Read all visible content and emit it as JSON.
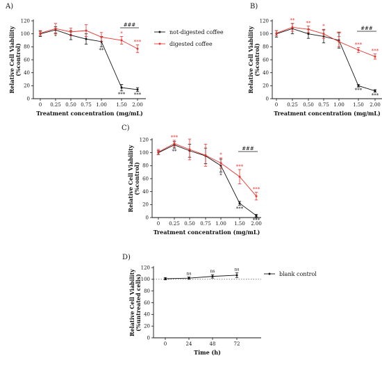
{
  "chart_data": [
    {
      "id": "A",
      "type": "line",
      "panel_label": "A)",
      "xlabel": "Treatment concentration (mg/mL)",
      "ylabel_line1": "Relative Cell Viability",
      "ylabel_line2": "(%control)",
      "categories": [
        "0",
        "0.25",
        "0.50",
        "0.75",
        "1.00",
        "1.50",
        "2.00"
      ],
      "ylim": [
        0,
        120
      ],
      "yticks": [
        "0",
        "20",
        "40",
        "60",
        "80",
        "100",
        "120"
      ],
      "legend_position": "right",
      "series": [
        {
          "name": "not-digested coffee",
          "color": "#111111",
          "values": [
            100,
            106,
            98,
            92,
            88,
            17,
            14
          ],
          "errors": [
            4,
            5,
            7,
            8,
            8,
            5,
            3
          ],
          "significance": [
            "",
            "*",
            "",
            "",
            "**",
            "***",
            "***"
          ]
        },
        {
          "name": "digested coffee",
          "color": "#e8332e",
          "values": [
            101,
            108,
            103,
            105,
            95,
            90,
            77
          ],
          "errors": [
            4,
            8,
            6,
            9,
            7,
            6,
            6
          ],
          "significance": [
            "",
            "",
            "",
            "",
            "",
            "*",
            "***"
          ]
        }
      ],
      "bracket_label": "###"
    },
    {
      "id": "B",
      "type": "line",
      "panel_label": "B)",
      "xlabel": "Treatment concentration (mg/mL)",
      "ylabel_line1": "Relative Cell Viability",
      "ylabel_line2": "(%control)",
      "categories": [
        "0",
        "0.25",
        "0.50",
        "0.75",
        "1.00",
        "1.50",
        "2.00"
      ],
      "ylim": [
        0,
        120
      ],
      "yticks": [
        "0",
        "20",
        "40",
        "60",
        "80",
        "100",
        "120"
      ],
      "series": [
        {
          "name": "not-digested coffee",
          "color": "#111111",
          "values": [
            100,
            108,
            100,
            96,
            90,
            20,
            12
          ],
          "errors": [
            5,
            8,
            7,
            10,
            12,
            2,
            2
          ],
          "significance": [
            "",
            "",
            "",
            "",
            "",
            "***",
            "***"
          ]
        },
        {
          "name": "digested coffee",
          "color": "#e8332e",
          "values": [
            101,
            110,
            107,
            100,
            88,
            75,
            65
          ],
          "errors": [
            4,
            6,
            5,
            7,
            8,
            4,
            4
          ],
          "significance": [
            "",
            "**",
            "**",
            "*",
            "**",
            "***",
            "***"
          ]
        }
      ],
      "bracket_label": "###"
    },
    {
      "id": "C",
      "type": "line",
      "panel_label": "C)",
      "xlabel": "Treatment concentration (mg/mL)",
      "ylabel_line1": "Relative Cell Viability",
      "ylabel_line2": "(%control)",
      "categories": [
        "0",
        "0.25",
        "0.50",
        "0.75",
        "1.00",
        "1.50",
        "2.00"
      ],
      "ylim": [
        0,
        120
      ],
      "yticks": [
        "0",
        "20",
        "40",
        "60",
        "80",
        "100",
        "120"
      ],
      "series": [
        {
          "name": "not-digested coffee",
          "color": "#111111",
          "values": [
            100,
            112,
            103,
            95,
            80,
            22,
            3
          ],
          "errors": [
            3,
            5,
            10,
            12,
            10,
            3,
            2
          ],
          "significance": [
            "",
            "**",
            "",
            "",
            "*",
            "***",
            "***"
          ]
        },
        {
          "name": "digested coffee",
          "color": "#e8332e",
          "values": [
            101,
            114,
            105,
            96,
            84,
            63,
            33
          ],
          "errors": [
            4,
            5,
            16,
            17,
            8,
            11,
            6
          ],
          "significance": [
            "",
            "***",
            "",
            "",
            "*",
            "***",
            "***"
          ]
        }
      ],
      "bracket_label": "###"
    },
    {
      "id": "D",
      "type": "line",
      "panel_label": "D)",
      "xlabel": "Time (h)",
      "ylabel_line1": "Relative Cell Viability",
      "ylabel_line2": "(%untreated cells)",
      "categories": [
        "0",
        "24",
        "48",
        "72"
      ],
      "ylim": [
        0,
        120
      ],
      "yticks": [
        "0",
        "20",
        "40",
        "60",
        "80",
        "100",
        "120"
      ],
      "reference_line": 100,
      "legend_position": "right",
      "series": [
        {
          "name": "blank control",
          "color": "#111111",
          "values": [
            101,
            102,
            105,
            107
          ],
          "errors": [
            2,
            2,
            3,
            4
          ],
          "significance": [
            "",
            "ns",
            "ns",
            "ns"
          ]
        }
      ]
    }
  ]
}
